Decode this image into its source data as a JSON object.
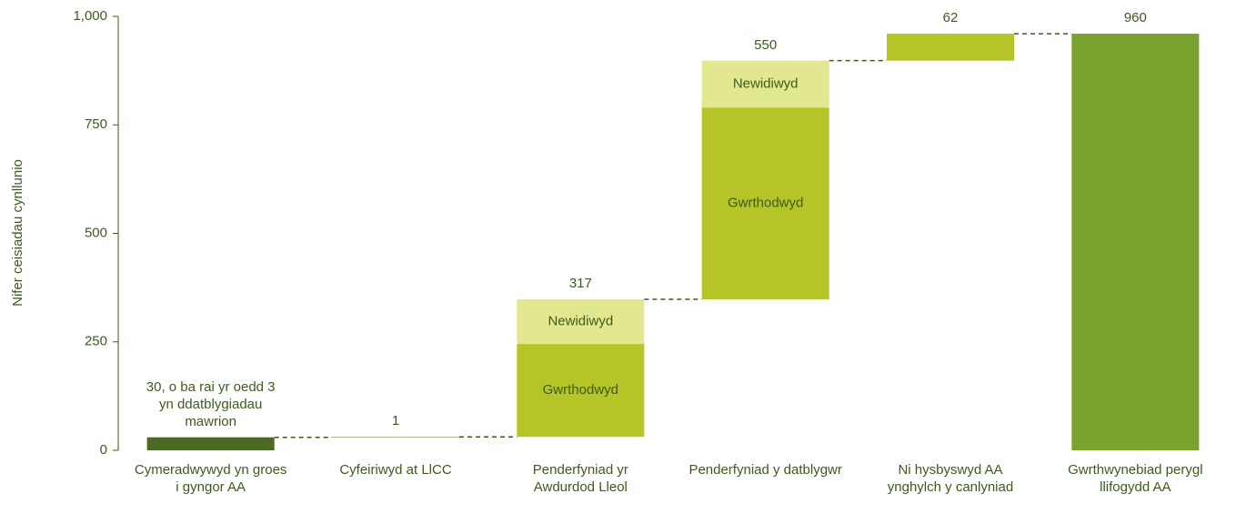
{
  "chart_data": {
    "type": "waterfall",
    "y_label": "Nifer ceisiadau cynllunio",
    "ylim": [
      0,
      1000
    ],
    "yticks": [
      0,
      250,
      500,
      750,
      {
        "value": 1000,
        "label": "1,000"
      }
    ],
    "steps": [
      {
        "category": "Cymeradwywyd yn groes i gyngor AA",
        "value": 30,
        "value_label": "30, o ba rai yr oedd 3 yn ddatblygiadau mawrion",
        "color": "#4b6a23"
      },
      {
        "category": "Cyfeiriwyd at LlCC",
        "value": 1,
        "color": "#4b6a23"
      },
      {
        "category": "Penderfyniad yr Awdurdod Lleol",
        "value": 317,
        "segments": [
          {
            "name": "Gwrthodwyd",
            "value": 214,
            "color": "#b5c426"
          },
          {
            "name": "Newidiwyd",
            "value": 103,
            "color": "#e2e88f"
          }
        ]
      },
      {
        "category": "Penderfyniad y datblygwr",
        "value": 550,
        "segments": [
          {
            "name": "Gwrthodwyd",
            "value": 442,
            "color": "#b5c426"
          },
          {
            "name": "Newidiwyd",
            "value": 108,
            "color": "#e2e88f"
          }
        ]
      },
      {
        "category": "Ni hysbyswyd AA ynghylch y canlyniad",
        "value": 62,
        "color": "#b5c426"
      },
      {
        "category": "Gwrthwynebiad perygl llifogydd AA",
        "value": 960,
        "total": true,
        "color": "#79a22f"
      }
    ]
  }
}
